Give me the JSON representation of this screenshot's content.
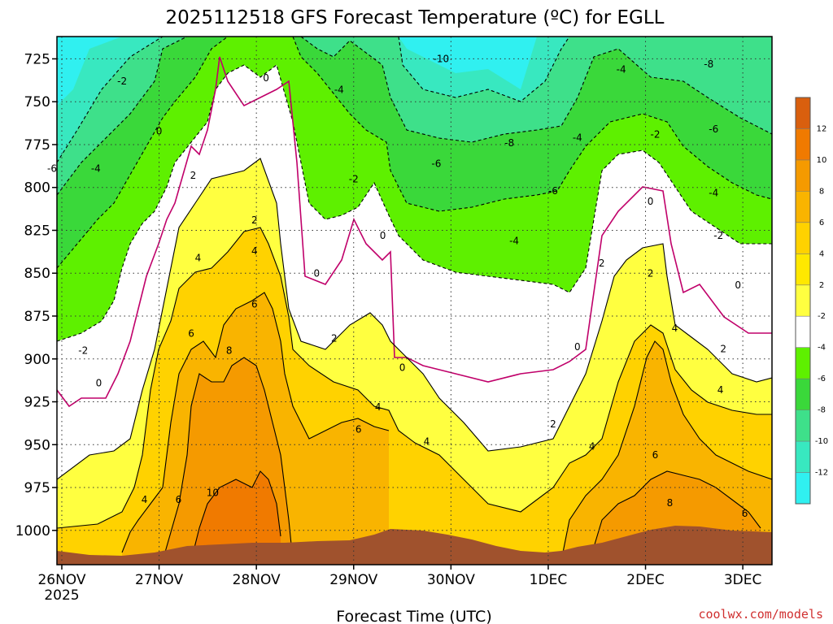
{
  "chart_data": {
    "type": "contour",
    "title": "2025112518 GFS Forecast Temperature (ºC) for EGLL",
    "xlabel": "Forecast Time (UTC)",
    "ylabel": "",
    "x_ticks": [
      {
        "day": 0,
        "label": "26NOV",
        "sub": "2025"
      },
      {
        "day": 1,
        "label": "27NOV"
      },
      {
        "day": 2,
        "label": "28NOV"
      },
      {
        "day": 3,
        "label": "29NOV"
      },
      {
        "day": 4,
        "label": "30NOV"
      },
      {
        "day": 5,
        "label": "1DEC"
      },
      {
        "day": 6,
        "label": "2DEC"
      },
      {
        "day": 7,
        "label": "3DEC"
      }
    ],
    "xlim_days": [
      -0.05,
      7.3
    ],
    "y_ticks": [
      725,
      750,
      775,
      800,
      825,
      850,
      875,
      900,
      925,
      950,
      975,
      1000
    ],
    "ylim_hPa": [
      1020,
      712
    ],
    "colorbar": {
      "labels": [
        "12",
        "10",
        "8",
        "6",
        "4",
        "2",
        "-2",
        "-4",
        "-6",
        "-8",
        "-10",
        "-12"
      ],
      "colors": [
        "#d95f0e",
        "#f07a00",
        "#f59a00",
        "#f9b400",
        "#ffd200",
        "#ffe800",
        "#ffff40",
        "#ffffff",
        "#5ef000",
        "#3ad83a",
        "#3ee08a",
        "#38e8c0",
        "#30f0f0"
      ]
    },
    "contour_labels": [
      {
        "day": 0.62,
        "p": 740,
        "t": "-2"
      },
      {
        "day": 1.0,
        "p": 769,
        "t": "0"
      },
      {
        "day": 1.35,
        "p": 795,
        "t": "2"
      },
      {
        "day": 1.4,
        "p": 843,
        "t": "4"
      },
      {
        "day": 1.33,
        "p": 887,
        "t": "6"
      },
      {
        "day": 1.72,
        "p": 897,
        "t": "8"
      },
      {
        "day": 1.55,
        "p": 980,
        "t": "10"
      },
      {
        "day": 1.2,
        "p": 984,
        "t": "6"
      },
      {
        "day": 0.85,
        "p": 984,
        "t": "4"
      },
      {
        "day": -0.1,
        "p": 791,
        "t": "-6"
      },
      {
        "day": 0.35,
        "p": 791,
        "t": "-4"
      },
      {
        "day": 0.22,
        "p": 897,
        "t": "-2"
      },
      {
        "day": 0.38,
        "p": 916,
        "t": "0"
      },
      {
        "day": 2.1,
        "p": 738,
        "t": "0"
      },
      {
        "day": 1.98,
        "p": 821,
        "t": "2"
      },
      {
        "day": 1.98,
        "p": 839,
        "t": "4"
      },
      {
        "day": 1.98,
        "p": 870,
        "t": "6"
      },
      {
        "day": 2.85,
        "p": 745,
        "t": "-4"
      },
      {
        "day": 3.0,
        "p": 797,
        "t": "-2"
      },
      {
        "day": 2.62,
        "p": 852,
        "t": "0"
      },
      {
        "day": 2.8,
        "p": 890,
        "t": "2"
      },
      {
        "day": 3.25,
        "p": 930,
        "t": "4"
      },
      {
        "day": 3.05,
        "p": 943,
        "t": "6"
      },
      {
        "day": 3.3,
        "p": 830,
        "t": "0"
      },
      {
        "day": 3.5,
        "p": 907,
        "t": "0"
      },
      {
        "day": 3.75,
        "p": 950,
        "t": "4"
      },
      {
        "day": 3.9,
        "p": 727,
        "t": "-10"
      },
      {
        "day": 3.85,
        "p": 788,
        "t": "-6"
      },
      {
        "day": 4.6,
        "p": 776,
        "t": "-8"
      },
      {
        "day": 4.65,
        "p": 833,
        "t": "-4"
      },
      {
        "day": 5.05,
        "p": 804,
        "t": "-6"
      },
      {
        "day": 5.3,
        "p": 773,
        "t": "-4"
      },
      {
        "day": 5.75,
        "p": 733,
        "t": "-4"
      },
      {
        "day": 6.1,
        "p": 771,
        "t": "-2"
      },
      {
        "day": 6.05,
        "p": 810,
        "t": "0"
      },
      {
        "day": 5.55,
        "p": 846,
        "t": "2"
      },
      {
        "day": 6.05,
        "p": 852,
        "t": "2"
      },
      {
        "day": 5.3,
        "p": 895,
        "t": "0"
      },
      {
        "day": 5.05,
        "p": 940,
        "t": "2"
      },
      {
        "day": 5.45,
        "p": 953,
        "t": "4"
      },
      {
        "day": 6.1,
        "p": 958,
        "t": "6"
      },
      {
        "day": 6.25,
        "p": 986,
        "t": "8"
      },
      {
        "day": 6.65,
        "p": 730,
        "t": "-8"
      },
      {
        "day": 6.7,
        "p": 768,
        "t": "-6"
      },
      {
        "day": 6.7,
        "p": 805,
        "t": "-4"
      },
      {
        "day": 6.75,
        "p": 830,
        "t": "-2"
      },
      {
        "day": 6.95,
        "p": 859,
        "t": "0"
      },
      {
        "day": 6.8,
        "p": 896,
        "t": "2"
      },
      {
        "day": 6.3,
        "p": 884,
        "t": "4"
      },
      {
        "day": 6.77,
        "p": 920,
        "t": "4"
      },
      {
        "day": 7.02,
        "p": 992,
        "t": "6"
      }
    ]
  },
  "credit": "coolwx.com/models"
}
